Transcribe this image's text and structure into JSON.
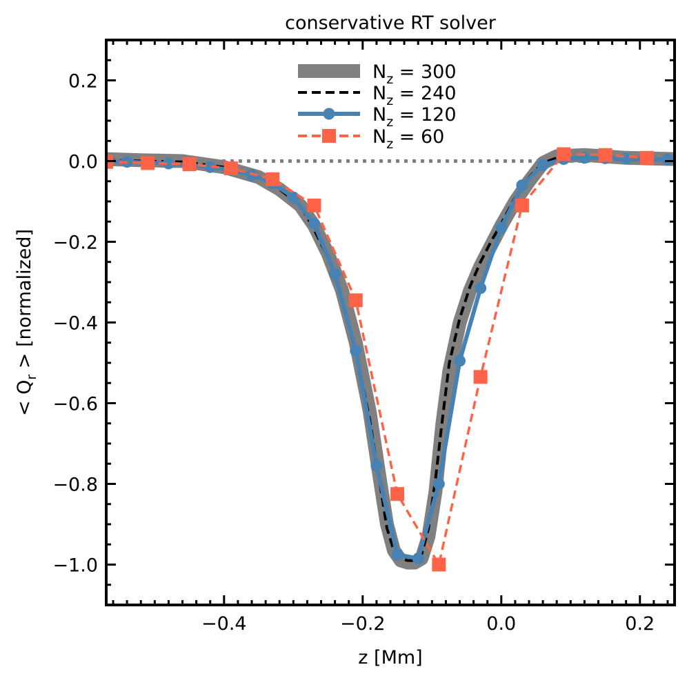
{
  "chart_data": {
    "type": "line",
    "title": "conservative RT solver",
    "xlabel": "z [Mm]",
    "ylabel": "< Q_r > [normalized]",
    "ylabel_parts": {
      "open": "< Q",
      "sub": "r",
      "close": " >  [normalized]"
    },
    "xlim": [
      -0.57,
      0.25
    ],
    "ylim": [
      -1.1,
      0.3
    ],
    "xticks": [
      -0.4,
      -0.2,
      0.0,
      0.2
    ],
    "xtick_labels": [
      "−0.4",
      "−0.2",
      "0.0",
      "0.2"
    ],
    "yticks": [
      0.2,
      0.0,
      -0.2,
      -0.4,
      -0.6,
      -0.8,
      -1.0
    ],
    "ytick_labels": [
      "0.2",
      "0.0",
      "−0.2",
      "−0.4",
      "−0.6",
      "−0.8",
      "−1.0"
    ],
    "zero_line": {
      "y": 0.0,
      "style": "dotted",
      "color": "#808080"
    },
    "legend_position": "top-center",
    "series": [
      {
        "name": "N_z = 300",
        "label_main": "N",
        "label_sub": "z",
        "label_value": " = 300",
        "color": "#808080",
        "style": "thick-solid",
        "marker": "none",
        "x": [
          -0.57,
          -0.52,
          -0.46,
          -0.4,
          -0.35,
          -0.32,
          -0.29,
          -0.27,
          -0.25,
          -0.23,
          -0.21,
          -0.19,
          -0.175,
          -0.165,
          -0.155,
          -0.145,
          -0.135,
          -0.125,
          -0.115,
          -0.105,
          -0.095,
          -0.085,
          -0.075,
          -0.06,
          -0.045,
          -0.03,
          -0.015,
          0.0,
          0.02,
          0.04,
          0.06,
          0.08,
          0.12,
          0.18,
          0.25
        ],
        "y": [
          0.005,
          0.002,
          0.0,
          -0.015,
          -0.04,
          -0.07,
          -0.11,
          -0.16,
          -0.23,
          -0.32,
          -0.45,
          -0.62,
          -0.79,
          -0.9,
          -0.965,
          -0.99,
          -0.995,
          -0.995,
          -0.985,
          -0.93,
          -0.82,
          -0.65,
          -0.52,
          -0.4,
          -0.32,
          -0.26,
          -0.21,
          -0.16,
          -0.1,
          -0.05,
          -0.005,
          0.012,
          0.015,
          0.008,
          0.005
        ]
      },
      {
        "name": "N_z = 240",
        "label_main": "N",
        "label_sub": "z",
        "label_value": " = 240",
        "color": "#000000",
        "style": "dashed",
        "marker": "none",
        "x": [
          -0.57,
          -0.52,
          -0.46,
          -0.4,
          -0.35,
          -0.32,
          -0.29,
          -0.27,
          -0.25,
          -0.23,
          -0.21,
          -0.19,
          -0.175,
          -0.165,
          -0.155,
          -0.145,
          -0.135,
          -0.125,
          -0.115,
          -0.105,
          -0.095,
          -0.085,
          -0.075,
          -0.06,
          -0.045,
          -0.03,
          -0.015,
          0.0,
          0.02,
          0.04,
          0.06,
          0.08,
          0.12,
          0.18,
          0.25
        ],
        "y": [
          0.002,
          0.0,
          -0.002,
          -0.015,
          -0.04,
          -0.07,
          -0.11,
          -0.17,
          -0.24,
          -0.34,
          -0.47,
          -0.64,
          -0.8,
          -0.91,
          -0.965,
          -0.985,
          -0.99,
          -0.99,
          -0.975,
          -0.91,
          -0.79,
          -0.64,
          -0.5,
          -0.39,
          -0.31,
          -0.25,
          -0.2,
          -0.155,
          -0.09,
          -0.04,
          -0.005,
          0.008,
          0.008,
          0.004,
          0.003
        ]
      },
      {
        "name": "N_z = 120",
        "label_main": "N",
        "label_sub": "z",
        "label_value": " = 120",
        "color": "#4682b4",
        "style": "solid",
        "marker": "circle",
        "x": [
          -0.57,
          -0.54,
          -0.51,
          -0.48,
          -0.45,
          -0.42,
          -0.39,
          -0.36,
          -0.33,
          -0.3,
          -0.27,
          -0.24,
          -0.21,
          -0.18,
          -0.15,
          -0.12,
          -0.09,
          -0.06,
          -0.03,
          0.0,
          0.03,
          0.06,
          0.09,
          0.12,
          0.15,
          0.18,
          0.21,
          0.24
        ],
        "y": [
          0.0,
          -0.002,
          -0.004,
          -0.006,
          -0.01,
          -0.015,
          -0.022,
          -0.035,
          -0.055,
          -0.09,
          -0.155,
          -0.28,
          -0.47,
          -0.755,
          -0.975,
          -0.985,
          -0.8,
          -0.495,
          -0.315,
          -0.165,
          -0.06,
          -0.01,
          0.005,
          0.008,
          0.007,
          0.006,
          0.005,
          0.004
        ]
      },
      {
        "name": "N_z = 60",
        "label_main": "N",
        "label_sub": "z",
        "label_value": " = 60",
        "color": "#ff6347",
        "style": "dashed",
        "marker": "square",
        "x": [
          -0.57,
          -0.51,
          -0.45,
          -0.39,
          -0.33,
          -0.27,
          -0.21,
          -0.15,
          -0.09,
          -0.03,
          0.03,
          0.09,
          0.15,
          0.21
        ],
        "y": [
          -0.002,
          -0.005,
          -0.008,
          -0.018,
          -0.045,
          -0.11,
          -0.345,
          -0.825,
          -1.0,
          -0.535,
          -0.11,
          0.017,
          0.015,
          0.008
        ]
      }
    ]
  }
}
